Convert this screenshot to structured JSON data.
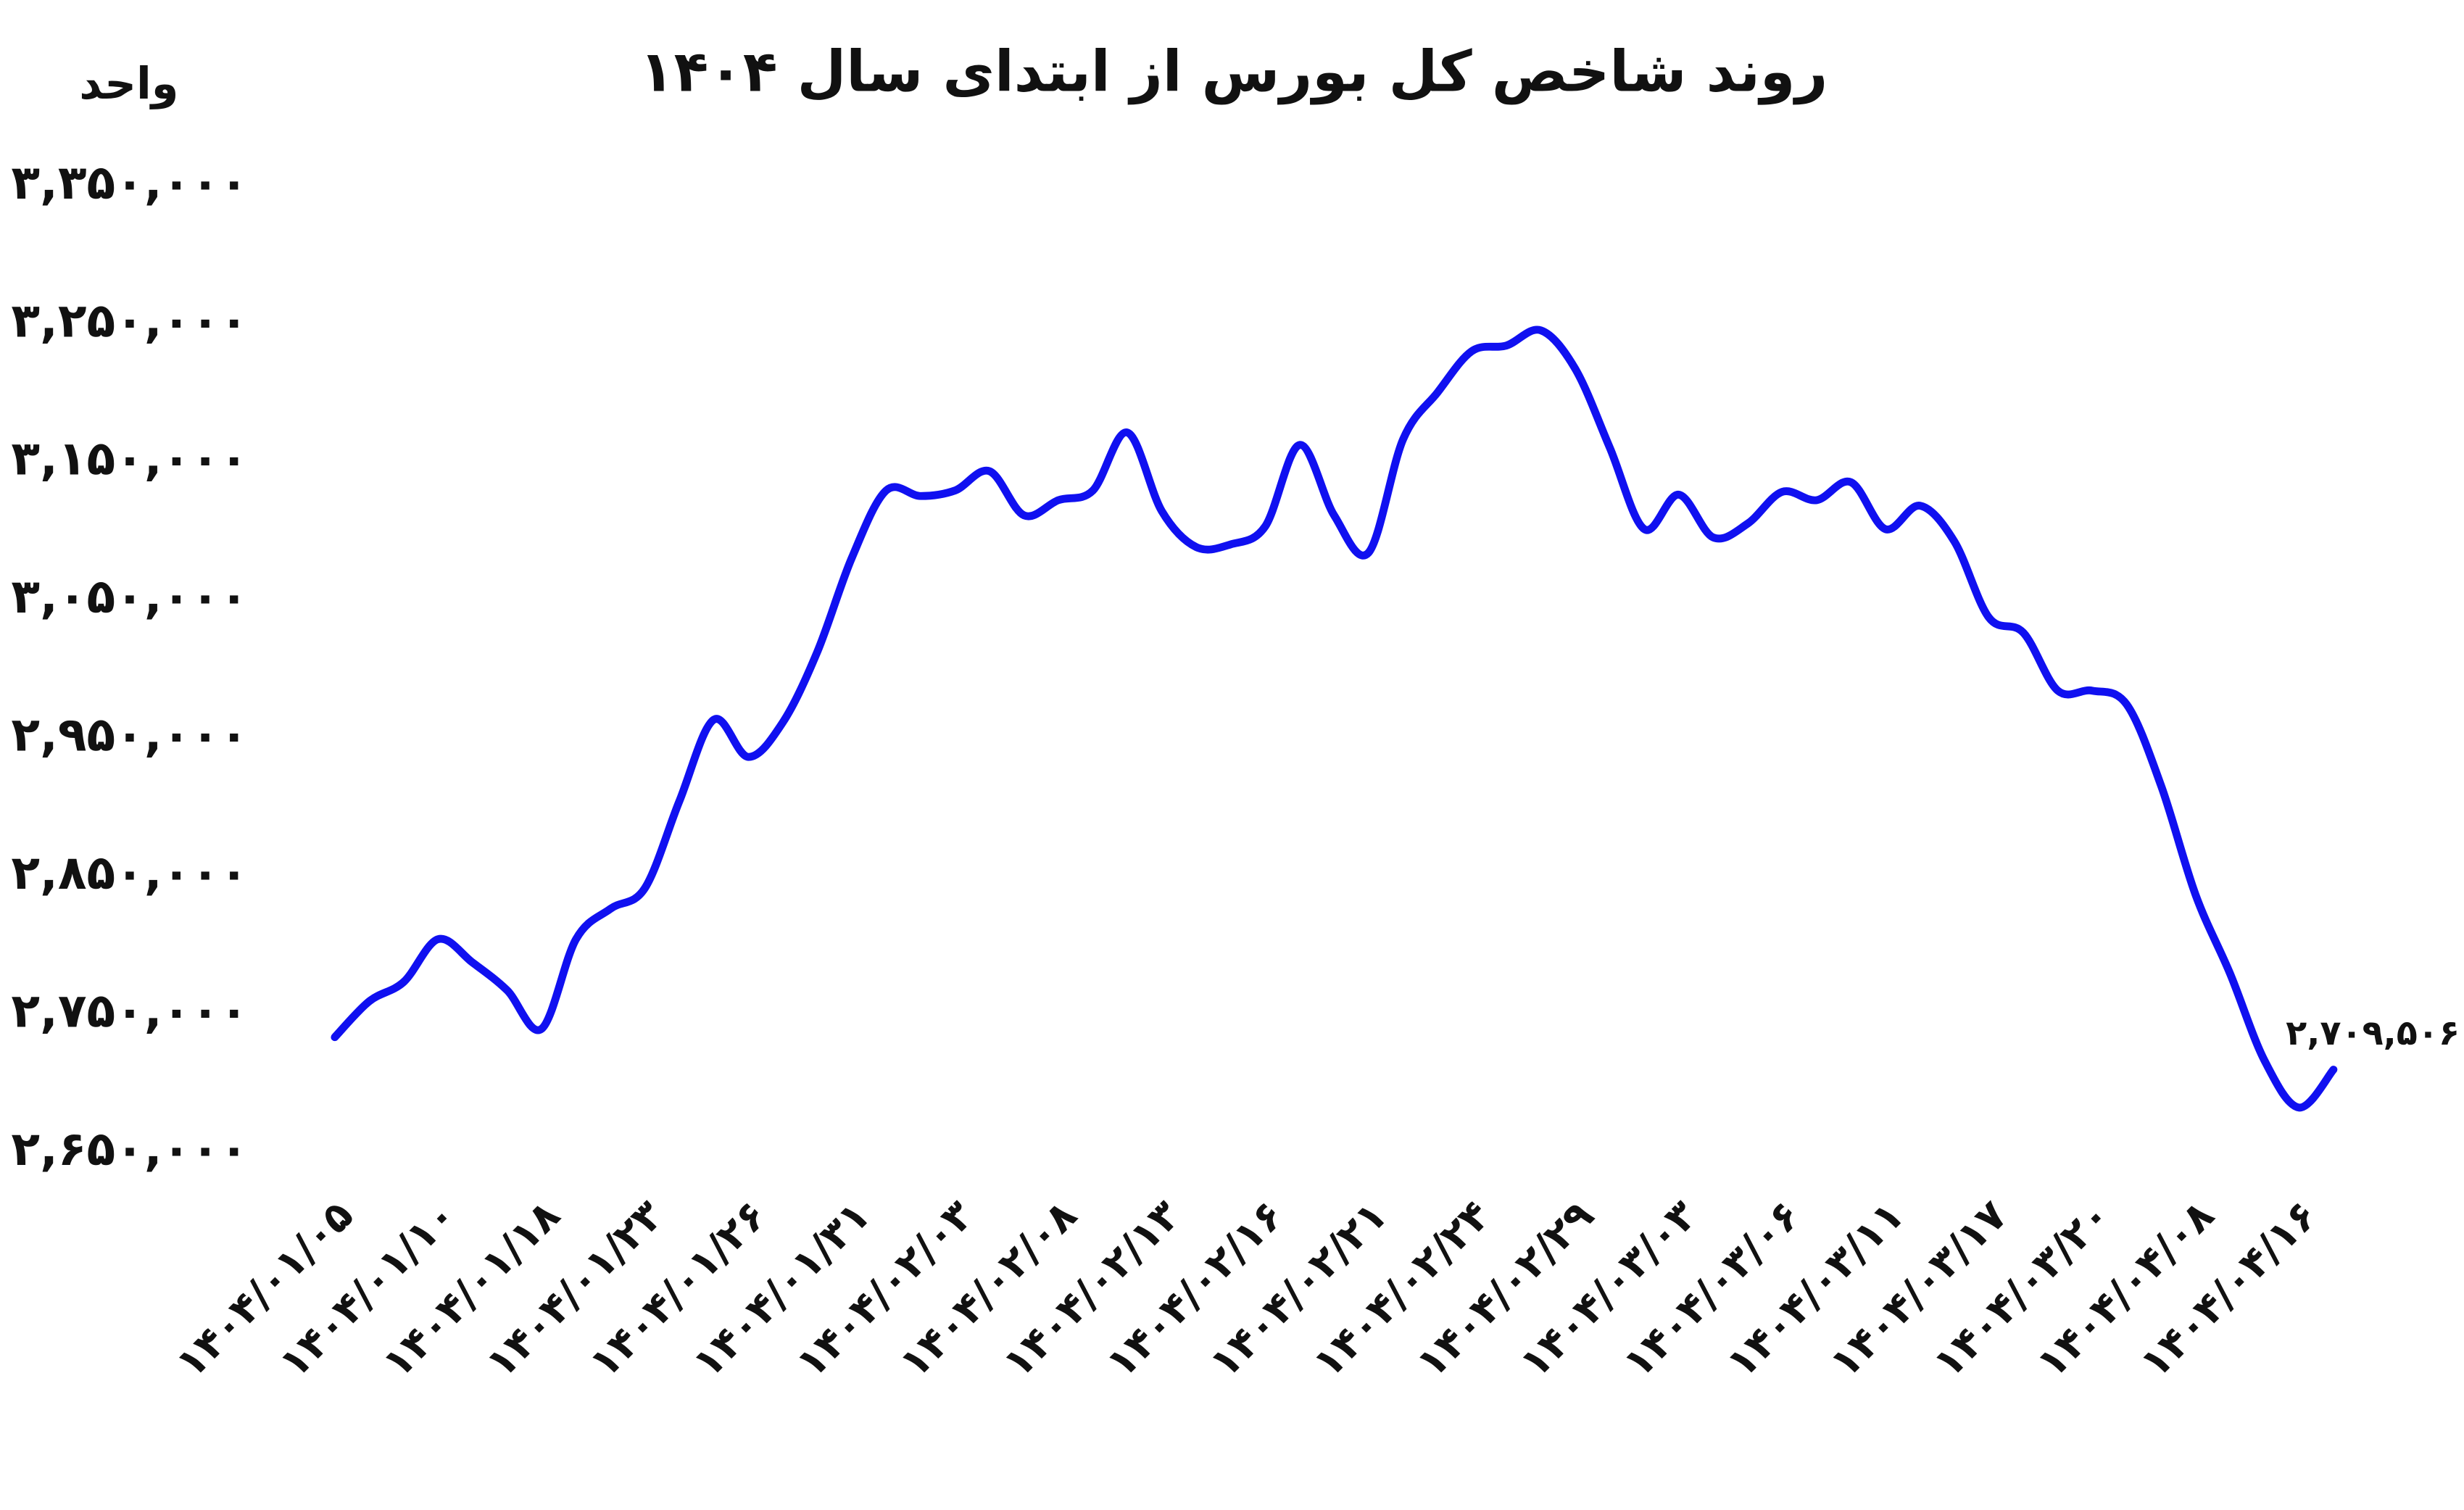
{
  "chart_data": {
    "type": "line",
    "title": "روند شاخص کل بورس از ابتدای سال ۱۴۰۴",
    "y_label": "واحد",
    "categories": [
      "۱۴۰۴/۰۱/۰۵",
      null,
      null,
      "۱۴۰۴/۰۱/۱۰",
      null,
      null,
      "۱۴۰۴/۰۱/۱۸",
      null,
      null,
      "۱۴۰۴/۰۱/۲۳",
      null,
      null,
      "۱۴۰۴/۰۱/۲۶",
      null,
      null,
      "۱۴۰۴/۰۱/۳۱",
      null,
      null,
      "۱۴۰۴/۰۲/۰۳",
      null,
      null,
      "۱۴۰۴/۰۲/۰۸",
      null,
      null,
      "۱۴۰۴/۰۲/۱۳",
      null,
      null,
      "۱۴۰۴/۰۲/۱۶",
      null,
      null,
      "۱۴۰۴/۰۲/۲۱",
      null,
      null,
      "۱۴۰۴/۰۲/۲۴",
      null,
      null,
      "۱۴۰۴/۰۲/۲۹",
      null,
      null,
      "۱۴۰۴/۰۳/۰۳",
      null,
      null,
      "۱۴۰۴/۰۳/۰۶",
      null,
      null,
      "۱۴۰۴/۰۳/۱۱",
      null,
      null,
      "۱۴۰۴/۰۳/۱۷",
      null,
      null,
      "۱۴۰۴/۰۳/۲۰",
      null,
      null,
      "۱۴۰۴/۰۴/۰۸",
      null,
      null,
      "۱۴۰۴/۰۴/۱۶",
      null
    ],
    "series": [
      {
        "color": "#1010f0",
        "values": [
          2733000,
          2759000,
          2773000,
          2804000,
          2787000,
          2767000,
          2739000,
          2804000,
          2826000,
          2841000,
          2904000,
          2963000,
          2936000,
          2961000,
          3012000,
          3080000,
          3129000,
          3125000,
          3129000,
          3143000,
          3111000,
          3122000,
          3129000,
          3171000,
          3114000,
          3088000,
          3090000,
          3103000,
          3162000,
          3111000,
          3084000,
          3166000,
          3200000,
          3230000,
          3234000,
          3245000,
          3217000,
          3160000,
          3101000,
          3126000,
          3095000,
          3105000,
          3128000,
          3122000,
          3135000,
          3101000,
          3118000,
          3092000,
          3037000,
          3026000,
          2984000,
          2984000,
          2974000,
          2915000,
          2836000,
          2779000,
          2716000,
          2682000,
          2709506
        ],
        "value_labels": [
          null,
          null,
          null,
          null,
          null,
          null,
          null,
          null,
          null,
          null,
          null,
          null,
          null,
          null,
          null,
          null,
          null,
          null,
          null,
          null,
          null,
          null,
          null,
          null,
          null,
          null,
          null,
          null,
          null,
          null,
          null,
          null,
          null,
          null,
          null,
          null,
          null,
          null,
          null,
          null,
          null,
          null,
          null,
          null,
          null,
          null,
          null,
          null,
          null,
          null,
          null,
          null,
          null,
          null,
          null,
          null,
          null,
          null,
          "۲,۷۰۹,۵۰۶"
        ]
      }
    ],
    "ylim": [
      2650000,
      3350000
    ],
    "yticks": [
      {
        "value": 3350000,
        "label": "۳,۳۵۰,۰۰۰"
      },
      {
        "value": 3250000,
        "label": "۳,۲۵۰,۰۰۰"
      },
      {
        "value": 3150000,
        "label": "۳,۱۵۰,۰۰۰"
      },
      {
        "value": 3050000,
        "label": "۳,۰۵۰,۰۰۰"
      },
      {
        "value": 2950000,
        "label": "۲,۹۵۰,۰۰۰"
      },
      {
        "value": 2850000,
        "label": "۲,۸۵۰,۰۰۰"
      },
      {
        "value": 2750000,
        "label": "۲,۷۵۰,۰۰۰"
      },
      {
        "value": 2650000,
        "label": "۲,۶۵۰,۰۰۰"
      }
    ],
    "grid": false
  }
}
